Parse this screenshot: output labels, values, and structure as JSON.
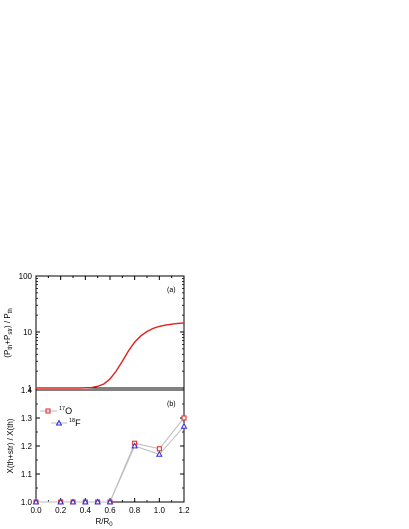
{
  "chart_data": [
    {
      "panel_label": "(a)",
      "type": "line",
      "ylabel": "(P_{th}+P_{str}) / P_{th}",
      "ylabel_parts": [
        "(P",
        "th",
        "+P",
        "str",
        ") / P",
        "th"
      ],
      "yscale": "log",
      "ylim": [
        1,
        100
      ],
      "xlim": [
        0.0,
        1.2
      ],
      "ytick_labels": [
        "1",
        "10",
        "100"
      ],
      "line_color": "#e0201b",
      "series": [
        {
          "x": [
            0.0,
            0.35,
            0.45,
            0.5,
            0.55,
            0.6,
            0.65,
            0.7,
            0.75,
            0.8,
            0.85,
            0.9,
            0.95,
            1.0,
            1.05,
            1.1,
            1.15,
            1.2
          ],
          "y": [
            1.0,
            1.0,
            1.02,
            1.07,
            1.18,
            1.45,
            2.0,
            3.0,
            4.6,
            6.6,
            8.5,
            10.2,
            11.6,
            12.6,
            13.3,
            13.8,
            14.2,
            14.5
          ]
        }
      ]
    },
    {
      "panel_label": "(b)",
      "type": "line",
      "ylabel": "X(th+str) / X(th)",
      "xlabel": "R/R",
      "xlabel_sub": "0",
      "xlim": [
        0.0,
        1.2
      ],
      "ylim": [
        1.0,
        1.4
      ],
      "xtick_labels": [
        "0.0",
        "0.2",
        "0.4",
        "0.6",
        "0.8",
        "1.0",
        "1.2"
      ],
      "ytick_labels": [
        "1.0",
        "1.1",
        "1.2",
        "1.3",
        "1.4"
      ],
      "legend_position": "top-left",
      "series": [
        {
          "name": "17O",
          "name_sup": "17",
          "name_base": "O",
          "marker": "square",
          "color": "#e0201b",
          "x": [
            0.0,
            0.2,
            0.3,
            0.4,
            0.5,
            0.6,
            0.8,
            1.0,
            1.2
          ],
          "y": [
            1.0,
            1.0,
            1.0,
            1.0,
            1.0,
            1.0,
            1.21,
            1.19,
            1.3
          ]
        },
        {
          "name": "18F",
          "name_sup": "18",
          "name_base": "F",
          "marker": "triangle",
          "color": "#2a2adf",
          "x": [
            0.0,
            0.2,
            0.3,
            0.4,
            0.5,
            0.6,
            0.8,
            1.0,
            1.2
          ],
          "y": [
            1.0,
            1.0,
            1.0,
            1.0,
            1.0,
            1.0,
            1.2,
            1.17,
            1.27
          ]
        }
      ]
    }
  ]
}
